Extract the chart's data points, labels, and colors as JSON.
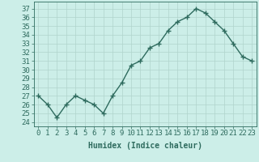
{
  "x": [
    0,
    1,
    2,
    3,
    4,
    5,
    6,
    7,
    8,
    9,
    10,
    11,
    12,
    13,
    14,
    15,
    16,
    17,
    18,
    19,
    20,
    21,
    22,
    23
  ],
  "y": [
    27,
    26,
    24.5,
    26,
    27,
    26.5,
    26,
    25,
    27,
    28.5,
    30.5,
    31,
    32.5,
    33,
    34.5,
    35.5,
    36,
    37,
    36.5,
    35.5,
    34.5,
    33,
    31.5,
    31
  ],
  "line_color": "#2e6b5e",
  "marker": "+",
  "bg_color": "#cceee8",
  "grid_color": "#b0d4cc",
  "xlabel": "Humidex (Indice chaleur)",
  "ylabel_ticks": [
    24,
    25,
    26,
    27,
    28,
    29,
    30,
    31,
    32,
    33,
    34,
    35,
    36,
    37
  ],
  "xlim": [
    -0.5,
    23.5
  ],
  "ylim": [
    23.5,
    37.8
  ],
  "xlabel_fontsize": 7,
  "tick_fontsize": 6.5,
  "line_width": 1.0,
  "marker_size": 4,
  "marker_edge_width": 1.0
}
